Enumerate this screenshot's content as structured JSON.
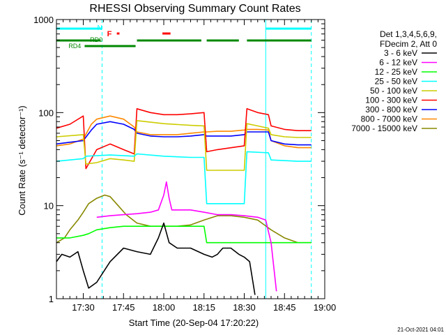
{
  "chart_data": {
    "type": "line",
    "title": "RHESSI Observing Summary Count Rates",
    "xlabel": "Start Time (20-Sep-04 17:20:22)",
    "ylabel": "Count Rate (s⁻¹ detector⁻¹)",
    "yscale": "log",
    "ylim": [
      1,
      1000
    ],
    "xlim_minutes": [
      0,
      100
    ],
    "x_ticks": [
      {
        "t": 10,
        "label": "17:30"
      },
      {
        "t": 25,
        "label": "17:45"
      },
      {
        "t": 40,
        "label": "18:00"
      },
      {
        "t": 55,
        "label": "18:15"
      },
      {
        "t": 70,
        "label": "18:30"
      },
      {
        "t": 85,
        "label": "18:45"
      },
      {
        "t": 100,
        "label": "19:00"
      }
    ],
    "y_ticks": [
      {
        "v": 1,
        "label": "1"
      },
      {
        "v": 10,
        "label": "10"
      },
      {
        "v": 100,
        "label": "100"
      },
      {
        "v": 1000,
        "label": "1000"
      }
    ],
    "legend_header": [
      "Det 1,3,4,5,6,9,",
      "FDecim 2, Att 0"
    ],
    "series": [
      {
        "name": "3 - 6 keV",
        "color": "#000000",
        "x": [
          0,
          2,
          5,
          8,
          10,
          12,
          15,
          20,
          25,
          30,
          35,
          38,
          40,
          42,
          45,
          50,
          55,
          58,
          60,
          62,
          65,
          68,
          70,
          72,
          74
        ],
        "y": [
          2.5,
          3.0,
          2.8,
          3.2,
          2.0,
          1.3,
          1.5,
          2.5,
          3.5,
          3.2,
          3.0,
          4.5,
          6.5,
          4.0,
          3.5,
          3.5,
          3.0,
          2.8,
          3.0,
          3.5,
          3.5,
          3.0,
          2.8,
          2.5,
          1.1
        ]
      },
      {
        "name": "6 - 12 keV",
        "color": "#ff00ff",
        "x": [
          15,
          20,
          25,
          30,
          35,
          38,
          40,
          41,
          42,
          43,
          45,
          50,
          55,
          60,
          65,
          70,
          75,
          78,
          80,
          82
        ],
        "y": [
          7.5,
          7.8,
          8.0,
          8.2,
          8.5,
          9.0,
          13,
          18,
          12,
          9.0,
          9.0,
          9.0,
          8.5,
          8.0,
          8.0,
          7.8,
          7.5,
          7.0,
          4.0,
          1.2
        ]
      },
      {
        "name": "12 - 25 keV",
        "color": "#00ff00",
        "x": [
          0,
          5,
          10,
          12,
          15,
          20,
          25,
          30,
          35,
          40,
          45,
          50,
          55,
          56,
          60,
          65,
          70,
          75,
          80,
          85,
          90,
          95
        ],
        "y": [
          4.5,
          4.5,
          4.8,
          5.0,
          5.5,
          5.8,
          6.0,
          6.0,
          6.0,
          6.0,
          6.0,
          6.0,
          6.0,
          4.0,
          4.0,
          4.0,
          4.0,
          4.0,
          4.0,
          4.0,
          4.0,
          4.0
        ]
      },
      {
        "name": "25 - 50 keV",
        "color": "#00ffff",
        "x": [
          0,
          10,
          11,
          20,
          29,
          30,
          40,
          50,
          55,
          56,
          65,
          70,
          71,
          79,
          80,
          90,
          95
        ],
        "y": [
          30,
          32,
          34,
          35,
          34,
          36,
          34,
          33,
          33,
          10.5,
          10.5,
          10.5,
          38,
          37,
          31,
          30,
          30
        ]
      },
      {
        "name": "50 - 100 keV",
        "color": "#cccc00",
        "x": [
          0,
          10,
          11,
          15,
          20,
          25,
          29,
          30,
          40,
          50,
          55,
          56,
          60,
          65,
          70,
          71,
          75,
          79,
          80,
          85,
          90,
          95
        ],
        "y": [
          55,
          58,
          28,
          29,
          32,
          31,
          30,
          82,
          76,
          73,
          72,
          24,
          24,
          24,
          24,
          76,
          72,
          68,
          58,
          55,
          54,
          54
        ]
      },
      {
        "name": "100 - 300 keV",
        "color": "#ff0000",
        "x": [
          0,
          5,
          10,
          11,
          15,
          20,
          25,
          29,
          30,
          35,
          40,
          45,
          50,
          55,
          56,
          60,
          70,
          71,
          75,
          79,
          80,
          85,
          90,
          95
        ],
        "y": [
          68,
          75,
          92,
          25,
          40,
          46,
          40,
          36,
          110,
          100,
          95,
          95,
          97,
          100,
          38,
          40,
          44,
          110,
          100,
          95,
          72,
          66,
          64,
          64
        ]
      },
      {
        "name": "300 - 800 keV",
        "color": "#0000ff",
        "x": [
          0,
          5,
          10,
          13,
          15,
          20,
          25,
          29,
          30,
          35,
          40,
          45,
          50,
          55,
          56,
          60,
          65,
          70,
          71,
          75,
          79,
          80,
          85,
          90,
          95
        ],
        "y": [
          46,
          48,
          50,
          65,
          75,
          80,
          75,
          66,
          60,
          56,
          55,
          55,
          56,
          58,
          56,
          56,
          56,
          58,
          62,
          62,
          62,
          50,
          46,
          45,
          45
        ]
      },
      {
        "name": "800 - 7000 keV",
        "color": "#ff8800",
        "x": [
          0,
          5,
          10,
          13,
          15,
          20,
          25,
          29,
          30,
          35,
          40,
          45,
          50,
          55,
          56,
          60,
          65,
          70,
          71,
          75,
          79,
          80,
          85,
          90,
          95
        ],
        "y": [
          44,
          46,
          52,
          75,
          85,
          92,
          85,
          70,
          62,
          58,
          58,
          58,
          60,
          62,
          62,
          63,
          63,
          65,
          66,
          66,
          65,
          50,
          44,
          42,
          42
        ]
      },
      {
        "name": "7000 - 15000 keV",
        "color": "#888800",
        "x": [
          0,
          3,
          5,
          8,
          10,
          12,
          15,
          18,
          20,
          23,
          26,
          30,
          35,
          40,
          45,
          50,
          55,
          60,
          65,
          70,
          75,
          80,
          85,
          90,
          95
        ],
        "y": [
          4.0,
          4.5,
          5.5,
          7.0,
          8.5,
          10.5,
          12,
          13,
          12.5,
          10,
          8.0,
          6.5,
          6.0,
          6.0,
          6.0,
          6.2,
          7.0,
          7.8,
          7.8,
          7.5,
          7.0,
          5.5,
          4.5,
          4.0,
          4.0
        ]
      }
    ],
    "annotations": {
      "flag_N": "N",
      "flag_F": "F",
      "flag_RD0": "RD0",
      "flag_RD4": "RD4",
      "night_intervals_minutes": [
        [
          0,
          17
        ],
        [
          78,
          95
        ]
      ],
      "f_intervals_minutes": [
        [
          22.5,
          23.5
        ],
        [
          39.5,
          42.5
        ]
      ],
      "rd0_intervals_minutes": [
        [
          0,
          16.5
        ],
        [
          30,
          54
        ],
        [
          56,
          68
        ],
        [
          71,
          95
        ]
      ],
      "rd4_intervals_minutes": [
        [
          10.5,
          29.5
        ]
      ],
      "saa_boundaries_minutes": [
        0,
        17,
        78,
        95
      ]
    }
  },
  "footer": {
    "timestamp": "21-Oct-2021 04:01"
  }
}
